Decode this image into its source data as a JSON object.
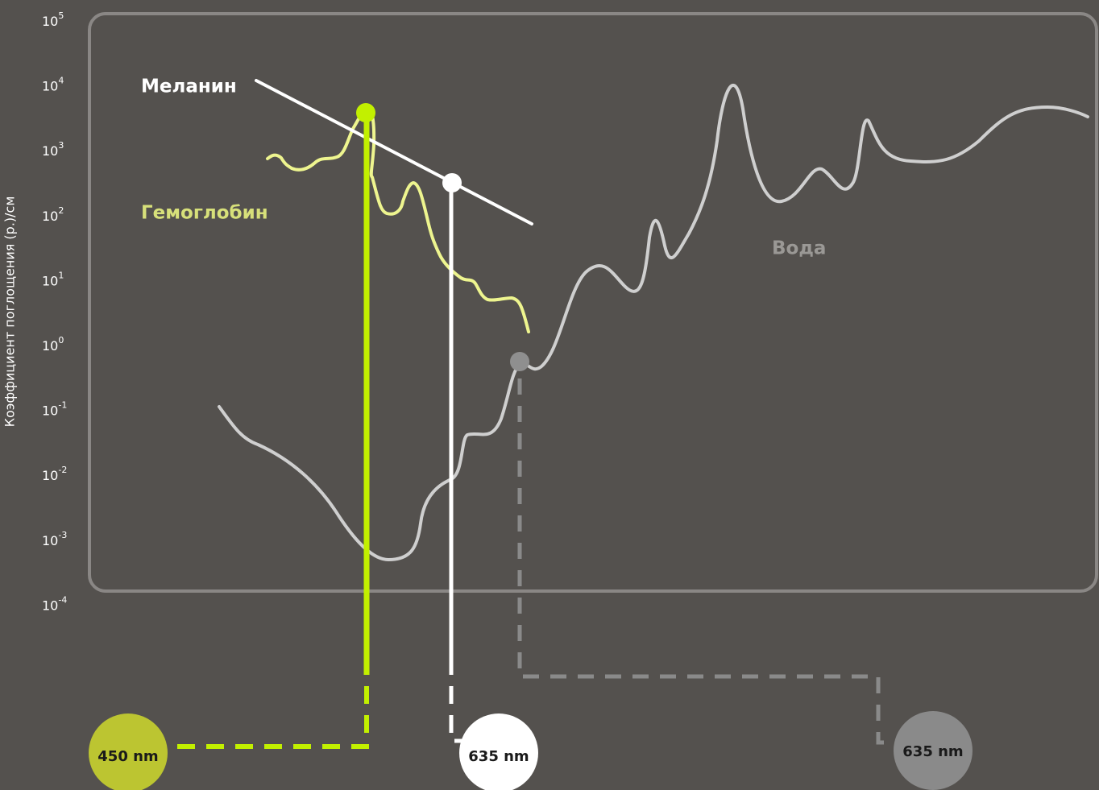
{
  "chart_data": {
    "type": "line",
    "title": "",
    "ylabel": "Коэффициент поглощения (р.)/см",
    "y_scale": "log",
    "ylim": [
      0.0001,
      100000
    ],
    "yticks": [
      {
        "base": "10",
        "exp": "5"
      },
      {
        "base": "10",
        "exp": "4"
      },
      {
        "base": "10",
        "exp": "3"
      },
      {
        "base": "10",
        "exp": "2"
      },
      {
        "base": "10",
        "exp": "1"
      },
      {
        "base": "10",
        "exp": "0"
      },
      {
        "base": "10",
        "exp": "-1"
      },
      {
        "base": "10",
        "exp": "-2"
      },
      {
        "base": "10",
        "exp": "-3"
      },
      {
        "base": "10",
        "exp": "-4"
      }
    ],
    "series": [
      {
        "name": "Меланин",
        "color": "#ffffff"
      },
      {
        "name": "Гемоглобин",
        "color": "#eef58f"
      },
      {
        "name": "Вода",
        "color": "#cfcfcf"
      }
    ],
    "markers": [
      {
        "label": "450 nm",
        "series": "Гемоглобин",
        "y": 3500,
        "dot_color": "#c2f000",
        "badge_color": "#bcc531",
        "line": "solid"
      },
      {
        "label": "635 nm",
        "series": "Меланин",
        "y": 300,
        "dot_color": "#ffffff",
        "badge_color": "#ffffff",
        "line": "solid"
      },
      {
        "label": "635 nm",
        "series": "Вода",
        "y": 0.6,
        "dot_color": "#8f8f8f",
        "badge_color": "#8a8a8a",
        "line": "dashed"
      }
    ]
  },
  "colors": {
    "background": "#54514e",
    "frame": "#8a8785",
    "tick_text": "#ffffff",
    "hemoglobin_label": "#d7e07a",
    "water_label": "#9a9895",
    "hemo_marker_line": "#c2f000",
    "water_marker_line": "#8a8a8a"
  }
}
